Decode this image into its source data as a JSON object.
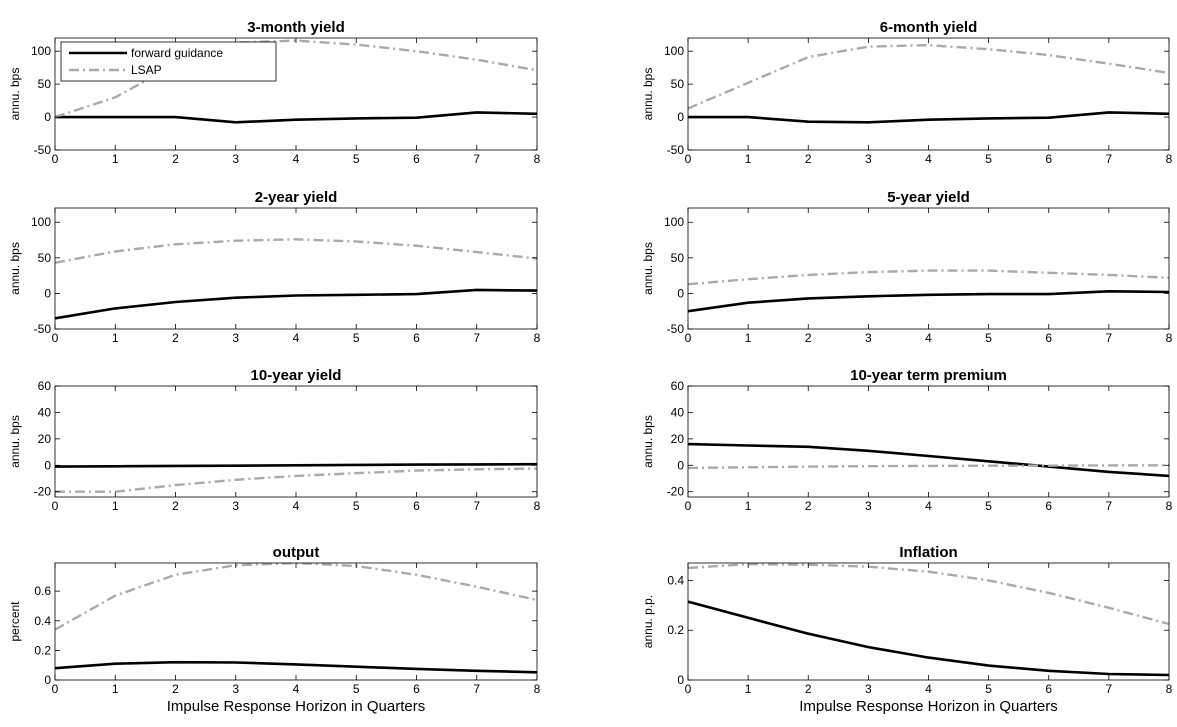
{
  "figure": {
    "series_styles": [
      {
        "name": "forward guidance",
        "color": "#000000",
        "dash": "solid"
      },
      {
        "name": "LSAP",
        "color": "#aaaaaa",
        "dash": "dash-dot"
      }
    ],
    "legend": {
      "entries": [
        "forward guidance",
        "LSAP"
      ],
      "location": "top-left of first panel"
    }
  },
  "chart_data": [
    {
      "type": "line",
      "title": "3-month yield",
      "xlabel": "",
      "ylabel": "annu. bps",
      "x": [
        0,
        1,
        2,
        3,
        4,
        5,
        6,
        7,
        8
      ],
      "xlim": [
        0,
        8
      ],
      "ylim": [
        -50,
        120
      ],
      "yticks": [
        -50,
        0,
        50,
        100
      ],
      "ytick_labels": [
        "-50",
        "0",
        "50",
        "100"
      ],
      "grid": false,
      "series": [
        {
          "name": "forward guidance",
          "values": [
            0,
            0,
            0,
            -8,
            -4,
            -2,
            -1,
            7,
            5
          ]
        },
        {
          "name": "LSAP",
          "values": [
            0,
            30,
            80,
            113,
            116,
            110,
            100,
            87,
            71
          ]
        }
      ]
    },
    {
      "type": "line",
      "title": "6-month yield",
      "xlabel": "",
      "ylabel": "annu. bps",
      "x": [
        0,
        1,
        2,
        3,
        4,
        5,
        6,
        7,
        8
      ],
      "xlim": [
        0,
        8
      ],
      "ylim": [
        -50,
        120
      ],
      "yticks": [
        -50,
        0,
        50,
        100
      ],
      "ytick_labels": [
        "-50",
        "0",
        "50",
        "100"
      ],
      "grid": false,
      "series": [
        {
          "name": "forward guidance",
          "values": [
            0,
            0,
            -7,
            -8,
            -4,
            -2,
            -1,
            7,
            5
          ]
        },
        {
          "name": "LSAP",
          "values": [
            13,
            52,
            91,
            107,
            109,
            103,
            94,
            81,
            67
          ]
        }
      ]
    },
    {
      "type": "line",
      "title": "2-year yield",
      "xlabel": "",
      "ylabel": "annu. bps",
      "x": [
        0,
        1,
        2,
        3,
        4,
        5,
        6,
        7,
        8
      ],
      "xlim": [
        0,
        8
      ],
      "ylim": [
        -50,
        120
      ],
      "yticks": [
        -50,
        0,
        50,
        100
      ],
      "ytick_labels": [
        "-50",
        "0",
        "50",
        "100"
      ],
      "grid": false,
      "series": [
        {
          "name": "forward guidance",
          "values": [
            -35,
            -21,
            -12,
            -6,
            -3,
            -2,
            -1,
            5,
            4
          ]
        },
        {
          "name": "LSAP",
          "values": [
            43,
            59,
            69,
            74,
            76,
            73,
            67,
            58,
            49
          ]
        }
      ]
    },
    {
      "type": "line",
      "title": "5-year yield",
      "xlabel": "",
      "ylabel": "annu. bps",
      "x": [
        0,
        1,
        2,
        3,
        4,
        5,
        6,
        7,
        8
      ],
      "xlim": [
        0,
        8
      ],
      "ylim": [
        -50,
        120
      ],
      "yticks": [
        -50,
        0,
        50,
        100
      ],
      "ytick_labels": [
        "-50",
        "0",
        "50",
        "100"
      ],
      "grid": false,
      "series": [
        {
          "name": "forward guidance",
          "values": [
            -25,
            -13,
            -7,
            -4,
            -2,
            -1,
            -1,
            3,
            2
          ]
        },
        {
          "name": "LSAP",
          "values": [
            13,
            20,
            26,
            30,
            32,
            32,
            29,
            26,
            22
          ]
        }
      ]
    },
    {
      "type": "line",
      "title": "10-year yield",
      "xlabel": "",
      "ylabel": "annu. bps",
      "x": [
        0,
        1,
        2,
        3,
        4,
        5,
        6,
        7,
        8
      ],
      "xlim": [
        0,
        8
      ],
      "ylim": [
        -24,
        60
      ],
      "yticks": [
        -20,
        0,
        20,
        40,
        60
      ],
      "ytick_labels": [
        "-20",
        "0",
        "20",
        "40",
        "60"
      ],
      "grid": false,
      "series": [
        {
          "name": "forward guidance",
          "values": [
            -1,
            -0.8,
            -0.5,
            -0.3,
            0,
            0.3,
            0.5,
            0.7,
            0.8
          ]
        },
        {
          "name": "LSAP",
          "values": [
            -20,
            -20,
            -15,
            -11,
            -8,
            -6,
            -4,
            -3,
            -2.5
          ]
        }
      ]
    },
    {
      "type": "line",
      "title": "10-year term premium",
      "xlabel": "",
      "ylabel": "annu. bps",
      "x": [
        0,
        1,
        2,
        3,
        4,
        5,
        6,
        7,
        8
      ],
      "xlim": [
        0,
        8
      ],
      "ylim": [
        -24,
        60
      ],
      "yticks": [
        -20,
        0,
        20,
        40,
        60
      ],
      "ytick_labels": [
        "-20",
        "0",
        "20",
        "40",
        "60"
      ],
      "grid": false,
      "series": [
        {
          "name": "forward guidance",
          "values": [
            16,
            15,
            14,
            11,
            7,
            3,
            -1,
            -5,
            -8
          ]
        },
        {
          "name": "LSAP",
          "values": [
            -2,
            -1.5,
            -1,
            -0.7,
            -0.5,
            -0.3,
            -0.2,
            -0.1,
            0
          ]
        }
      ]
    },
    {
      "type": "line",
      "title": "output",
      "xlabel": "Impulse Response Horizon in Quarters",
      "ylabel": "percent",
      "x": [
        0,
        1,
        2,
        3,
        4,
        5,
        6,
        7,
        8
      ],
      "xlim": [
        0,
        8
      ],
      "ylim": [
        0,
        0.79
      ],
      "yticks": [
        0,
        0.2,
        0.4,
        0.6
      ],
      "ytick_labels": [
        "0",
        "0.2",
        "0.4",
        "0.6"
      ],
      "grid": false,
      "series": [
        {
          "name": "forward guidance",
          "values": [
            0.08,
            0.11,
            0.12,
            0.118,
            0.105,
            0.09,
            0.075,
            0.062,
            0.052
          ]
        },
        {
          "name": "LSAP",
          "values": [
            0.34,
            0.57,
            0.71,
            0.775,
            0.79,
            0.77,
            0.71,
            0.63,
            0.54
          ]
        }
      ]
    },
    {
      "type": "line",
      "title": "Inflation",
      "xlabel": "Impulse Response Horizon in Quarters",
      "ylabel": "annu. p.p.",
      "x": [
        0,
        1,
        2,
        3,
        4,
        5,
        6,
        7,
        8
      ],
      "xlim": [
        0,
        8
      ],
      "ylim": [
        0,
        0.47
      ],
      "yticks": [
        0,
        0.2,
        0.4
      ],
      "ytick_labels": [
        "0",
        "0.2",
        "0.4"
      ],
      "grid": false,
      "series": [
        {
          "name": "forward guidance",
          "values": [
            0.315,
            0.25,
            0.186,
            0.132,
            0.09,
            0.058,
            0.037,
            0.024,
            0.02
          ]
        },
        {
          "name": "LSAP",
          "values": [
            0.45,
            0.465,
            0.463,
            0.455,
            0.435,
            0.4,
            0.35,
            0.29,
            0.225
          ]
        }
      ]
    }
  ]
}
